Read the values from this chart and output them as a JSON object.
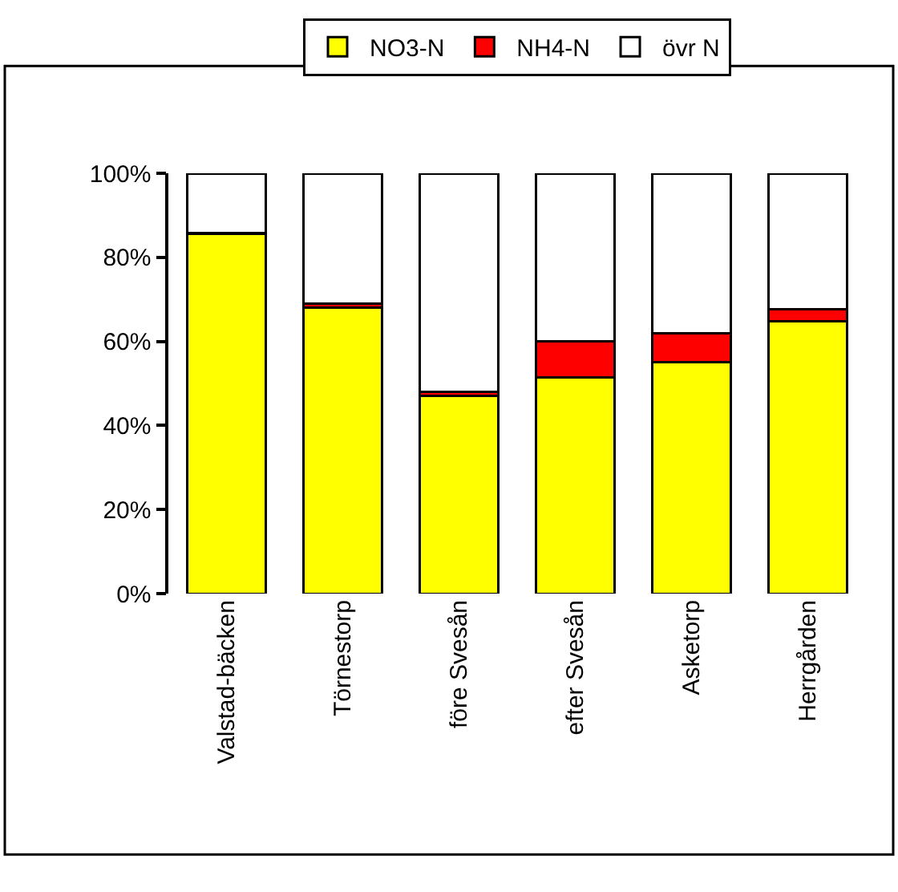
{
  "chart_data": {
    "type": "bar",
    "stacked": true,
    "categories": [
      "Valstad-bäcken",
      "Törnestorp",
      "före Svesån",
      "efter Svesån",
      "Asketorp",
      "Herrgården"
    ],
    "series": [
      {
        "name": "NO3-N",
        "color": "#ffff00",
        "values": [
          85.5,
          68,
          47,
          51.5,
          55,
          64.7
        ]
      },
      {
        "name": "NH4-N",
        "color": "#ff0000",
        "values": [
          0.3,
          1,
          1,
          8.5,
          7,
          3
        ]
      },
      {
        "name": "övr N",
        "color": "#ffffff",
        "values": [
          14.2,
          31,
          52,
          40,
          38,
          32.3
        ]
      }
    ],
    "ylim": [
      0,
      100
    ],
    "yticks": [
      {
        "value": 0,
        "label": "0%"
      },
      {
        "value": 20,
        "label": "20%"
      },
      {
        "value": 40,
        "label": "40%"
      },
      {
        "value": 60,
        "label": "60%"
      },
      {
        "value": 80,
        "label": "80%"
      },
      {
        "value": 100,
        "label": "100%"
      }
    ],
    "grid": false,
    "legend": "top"
  }
}
